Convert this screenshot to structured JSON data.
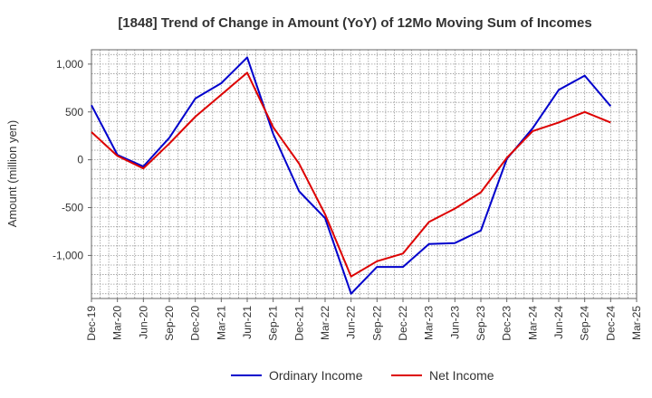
{
  "chart_data": {
    "type": "line",
    "title": "[1848]  Trend of Change in Amount (YoY) of 12Mo Moving Sum of Incomes",
    "xlabel": "",
    "ylabel": "Amount (million yen)",
    "ylim": [
      -1450,
      1150
    ],
    "yticks": [
      1000,
      500,
      0,
      -500,
      -1000
    ],
    "ytick_labels": [
      "1,000",
      "500",
      "0",
      "-500",
      "-1,000"
    ],
    "categories": [
      "Dec-19",
      "Mar-20",
      "Jun-20",
      "Sep-20",
      "Dec-20",
      "Mar-21",
      "Jun-21",
      "Sep-21",
      "Dec-21",
      "Mar-22",
      "Jun-22",
      "Sep-22",
      "Dec-22",
      "Mar-23",
      "Jun-23",
      "Sep-23",
      "Dec-23",
      "Mar-24",
      "Jun-24",
      "Sep-24",
      "Dec-24",
      "Mar-25"
    ],
    "series": [
      {
        "name": "Ordinary Income",
        "color": "#0000cc",
        "values": [
          570,
          50,
          -70,
          230,
          640,
          800,
          1070,
          270,
          -330,
          -610,
          -1400,
          -1120,
          -1120,
          -880,
          -870,
          -740,
          10,
          330,
          730,
          880,
          560,
          null
        ]
      },
      {
        "name": "Net Income",
        "color": "#dd0000",
        "values": [
          290,
          40,
          -90,
          170,
          450,
          680,
          910,
          340,
          -40,
          -570,
          -1220,
          -1060,
          -980,
          -650,
          -510,
          -340,
          20,
          300,
          390,
          500,
          390,
          null
        ]
      }
    ],
    "grid": true,
    "legend": "bottom-center"
  }
}
